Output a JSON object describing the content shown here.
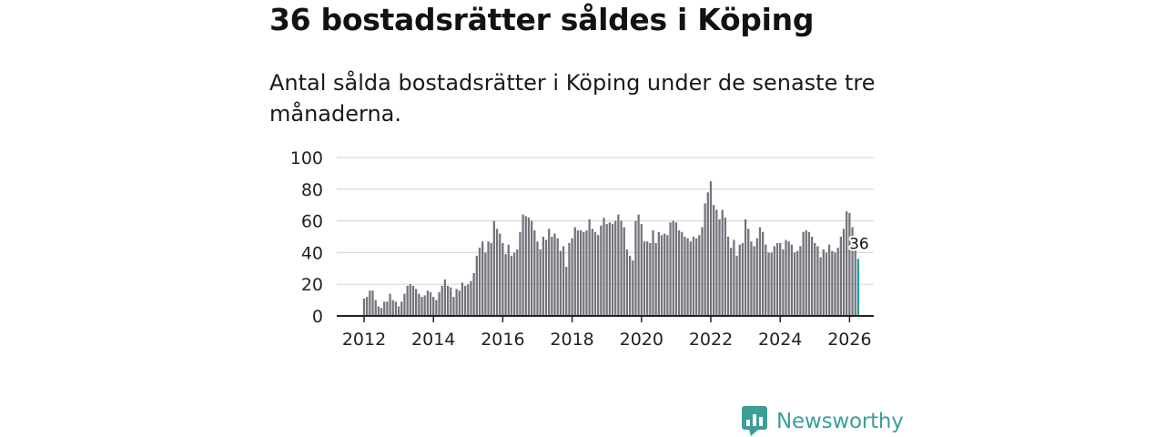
{
  "headline": "36 bostadsrätter såldes i Köping",
  "description": "Antal sålda bostadsrätter i Köping under de senaste tre månaderna.",
  "brand": {
    "name": "Newsworthy",
    "icon": "bar-chart-speech-bubble-icon",
    "color": "#3c9e98"
  },
  "colors": {
    "bar": "#75747d",
    "highlight": "#1e9e9a",
    "grid": "#d9d9d9",
    "axis": "#222222"
  },
  "chart_data": {
    "type": "bar",
    "title": "",
    "xlabel": "",
    "ylabel": "",
    "ylim": [
      0,
      100
    ],
    "yticks": [
      "0",
      "20",
      "40",
      "60",
      "80",
      "100"
    ],
    "xticks": [
      "2012",
      "2014",
      "2016",
      "2018",
      "2020",
      "2022",
      "2024",
      "2026"
    ],
    "x_start": 2012.0,
    "x_step": 0.08333,
    "values": [
      11,
      12,
      16,
      16,
      10,
      6,
      5,
      9,
      9,
      14,
      10,
      9,
      6,
      9,
      14,
      19,
      20,
      19,
      17,
      14,
      12,
      13,
      16,
      15,
      12,
      10,
      15,
      19,
      23,
      19,
      18,
      12,
      17,
      16,
      21,
      19,
      20,
      22,
      27,
      38,
      43,
      47,
      40,
      47,
      46,
      60,
      55,
      52,
      46,
      39,
      45,
      38,
      40,
      42,
      53,
      64,
      63,
      62,
      60,
      54,
      47,
      42,
      50,
      48,
      55,
      50,
      52,
      49,
      41,
      44,
      31,
      46,
      49,
      56,
      54,
      54,
      53,
      54,
      61,
      55,
      53,
      51,
      57,
      62,
      58,
      59,
      58,
      60,
      64,
      60,
      56,
      42,
      38,
      35,
      60,
      64,
      58,
      47,
      47,
      46,
      54,
      46,
      53,
      51,
      52,
      51,
      59,
      60,
      59,
      54,
      53,
      50,
      49,
      47,
      50,
      49,
      51,
      56,
      71,
      78,
      85,
      70,
      67,
      61,
      67,
      62,
      50,
      43,
      48,
      38,
      45,
      46,
      61,
      55,
      47,
      44,
      49,
      56,
      53,
      45,
      40,
      40,
      44,
      46,
      46,
      42,
      48,
      47,
      45,
      40,
      41,
      44,
      53,
      54,
      53,
      50,
      46,
      44,
      37,
      42,
      40,
      45,
      41,
      40,
      43,
      50,
      55,
      66,
      65,
      56,
      47,
      36
    ],
    "highlight_label": "36"
  }
}
